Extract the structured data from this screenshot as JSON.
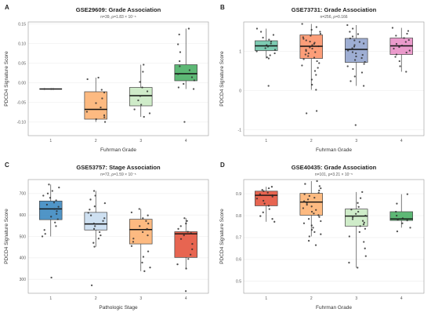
{
  "chart_data": [
    {
      "type": "box",
      "panel": "A",
      "title": "GSE29609: Grade Association",
      "subtitle": "n=39, ρ=1.83 × 10⁻⁶",
      "xlabel": "Fuhrman Grade",
      "ylabel": "PDCD4 Signature Score",
      "categories": [
        "1",
        "2",
        "3",
        "4"
      ],
      "colors": [
        "#000000",
        "#fdae6b",
        "#c7e9c0",
        "#41ab5d"
      ],
      "ylim": [
        -0.135,
        0.155
      ],
      "yticks": [
        -0.1,
        -0.05,
        0.0,
        0.05,
        0.1,
        0.15
      ],
      "ytick_labels": [
        "-0.10",
        "-0.05",
        "0.00",
        "0.05",
        "0.10",
        "0.15"
      ],
      "boxes": [
        {
          "category": "1",
          "min": -0.016,
          "q1": -0.016,
          "median": -0.016,
          "q3": -0.016,
          "max": -0.016
        },
        {
          "category": "2",
          "min": -0.1,
          "q1": -0.093,
          "median": -0.068,
          "q3": -0.023,
          "max": 0.013
        },
        {
          "category": "3",
          "min": -0.087,
          "q1": -0.059,
          "median": -0.033,
          "q3": -0.012,
          "max": 0.046
        },
        {
          "category": "4",
          "min": -0.016,
          "q1": 0.005,
          "median": 0.023,
          "q3": 0.046,
          "max": 0.138
        }
      ],
      "points": [
        [
          -0.016,
          -0.016,
          -0.016
        ],
        [
          0.013,
          0.009,
          -0.018,
          -0.025,
          -0.052,
          -0.063,
          -0.074,
          -0.083,
          -0.093,
          -0.1,
          -0.088,
          -0.04
        ],
        [
          0.046,
          0.028,
          0.002,
          -0.012,
          -0.022,
          -0.034,
          -0.045,
          -0.056,
          -0.068,
          -0.078,
          -0.087
        ],
        [
          0.138,
          0.123,
          0.098,
          0.078,
          0.055,
          0.042,
          0.032,
          0.022,
          0.014,
          0.006,
          -0.003,
          -0.012,
          -0.016,
          -0.1
        ]
      ]
    },
    {
      "type": "box",
      "panel": "B",
      "title": "GSE73731: Grade Association",
      "subtitle": "n=256, ρ=0.166",
      "xlabel": "Fuhrman Grade",
      "ylabel": "PDCD4 Signature Score",
      "categories": [
        "1",
        "2",
        "3",
        "4"
      ],
      "colors": [
        "#66c2a5",
        "#fc8d62",
        "#8da0cb",
        "#e78ac3"
      ],
      "ylim": [
        -1.15,
        1.75
      ],
      "yticks": [
        -1,
        0,
        1
      ],
      "ytick_labels": [
        "-1",
        "0",
        "1"
      ],
      "boxes": [
        {
          "category": "1",
          "min": 0.82,
          "q1": 1.02,
          "median": 1.14,
          "q3": 1.27,
          "max": 1.58
        },
        {
          "category": "2",
          "min": 0.02,
          "q1": 0.82,
          "median": 1.13,
          "q3": 1.42,
          "max": 1.7
        },
        {
          "category": "3",
          "min": 0.12,
          "q1": 0.72,
          "median": 1.05,
          "q3": 1.33,
          "max": 1.67
        },
        {
          "category": "4",
          "min": 0.48,
          "q1": 0.92,
          "median": 1.14,
          "q3": 1.34,
          "max": 1.6
        }
      ],
      "points": [
        [
          1.58,
          1.5,
          1.42,
          1.35,
          1.3,
          1.25,
          1.2,
          1.16,
          1.12,
          1.08,
          1.04,
          1.0,
          0.95,
          0.9,
          0.85,
          0.82,
          0.12
        ],
        [
          1.7,
          1.62,
          1.55,
          1.5,
          1.45,
          1.4,
          1.36,
          1.32,
          1.28,
          1.25,
          1.22,
          1.19,
          1.16,
          1.13,
          1.1,
          1.07,
          1.04,
          1.01,
          0.98,
          0.95,
          0.92,
          0.88,
          0.84,
          0.8,
          0.75,
          0.7,
          0.64,
          0.58,
          0.5,
          0.4,
          0.28,
          0.15,
          0.02,
          -0.52,
          -0.58
        ],
        [
          1.67,
          1.58,
          1.5,
          1.44,
          1.38,
          1.33,
          1.28,
          1.24,
          1.2,
          1.16,
          1.12,
          1.08,
          1.05,
          1.02,
          0.98,
          0.95,
          0.91,
          0.87,
          0.83,
          0.78,
          0.73,
          0.68,
          0.62,
          0.55,
          0.46,
          0.36,
          0.24,
          0.12,
          -0.88
        ],
        [
          1.6,
          1.52,
          1.45,
          1.4,
          1.34,
          1.29,
          1.24,
          1.19,
          1.15,
          1.11,
          1.07,
          1.02,
          0.97,
          0.92,
          0.86,
          0.75,
          0.62,
          0.48
        ]
      ]
    },
    {
      "type": "box",
      "panel": "C",
      "title": "GSE53757: Stage Association",
      "subtitle": "n=72, ρ=1.59 × 10⁻⁵",
      "xlabel": "Pathologic Stage",
      "ylabel": "PDCD4 Signature Score",
      "categories": [
        "1",
        "2",
        "3",
        "4"
      ],
      "colors": [
        "#3182bd",
        "#c6dbef",
        "#fdae6b",
        "#e34a33"
      ],
      "ylim": [
        235,
        765
      ],
      "yticks": [
        300,
        400,
        500,
        600,
        700
      ],
      "ytick_labels": [
        "300",
        "400",
        "500",
        "600",
        "700"
      ],
      "boxes": [
        {
          "category": "1",
          "min": 500,
          "q1": 578,
          "median": 628,
          "q3": 665,
          "max": 742
        },
        {
          "category": "2",
          "min": 452,
          "q1": 530,
          "median": 558,
          "q3": 612,
          "max": 712
        },
        {
          "category": "3",
          "min": 338,
          "q1": 465,
          "median": 532,
          "q3": 580,
          "max": 628
        },
        {
          "category": "4",
          "min": 350,
          "q1": 402,
          "median": 512,
          "q3": 522,
          "max": 585
        }
      ],
      "points": [
        [
          742,
          728,
          712,
          700,
          690,
          680,
          668,
          658,
          648,
          638,
          628,
          618,
          605,
          592,
          580,
          565,
          548,
          530,
          512,
          500,
          308
        ],
        [
          712,
          690,
          672,
          655,
          640,
          625,
          610,
          598,
          585,
          572,
          560,
          548,
          535,
          520,
          505,
          490,
          470,
          452,
          272
        ],
        [
          628,
          612,
          598,
          585,
          572,
          560,
          548,
          535,
          520,
          505,
          490,
          475,
          455,
          430,
          405,
          378,
          355,
          338
        ],
        [
          585,
          572,
          560,
          548,
          535,
          522,
          515,
          505,
          488,
          465,
          440,
          415,
          395,
          370,
          350,
          245
        ]
      ]
    },
    {
      "type": "box",
      "panel": "D",
      "title": "GSE40435: Grade Association",
      "subtitle": "n=101, ρ=3.21 × 10⁻⁵",
      "xlabel": "Fuhrman Grade",
      "ylabel": "PDCD4 Signature Score",
      "categories": [
        "1",
        "2",
        "3",
        "4"
      ],
      "colors": [
        "#e34a33",
        "#fdae6b",
        "#c7e9c0",
        "#41ab5d"
      ],
      "ylim": [
        0.445,
        0.965
      ],
      "yticks": [
        0.5,
        0.6,
        0.7,
        0.8,
        0.9
      ],
      "ytick_labels": [
        "0.5",
        "0.6",
        "0.7",
        "0.8",
        "0.9"
      ],
      "boxes": [
        {
          "category": "1",
          "min": 0.772,
          "q1": 0.845,
          "median": 0.893,
          "q3": 0.912,
          "max": 0.932
        },
        {
          "category": "2",
          "min": 0.705,
          "q1": 0.802,
          "median": 0.862,
          "q3": 0.902,
          "max": 0.958
        },
        {
          "category": "3",
          "min": 0.562,
          "q1": 0.752,
          "median": 0.798,
          "q3": 0.83,
          "max": 0.908
        },
        {
          "category": "4",
          "min": 0.745,
          "q1": 0.778,
          "median": 0.785,
          "q3": 0.818,
          "max": 0.898
        }
      ],
      "points": [
        [
          0.932,
          0.925,
          0.918,
          0.912,
          0.905,
          0.898,
          0.893,
          0.887,
          0.878,
          0.868,
          0.855,
          0.845,
          0.83,
          0.815,
          0.798,
          0.785,
          0.772
        ],
        [
          0.958,
          0.945,
          0.935,
          0.925,
          0.915,
          0.905,
          0.898,
          0.89,
          0.882,
          0.874,
          0.866,
          0.858,
          0.85,
          0.842,
          0.834,
          0.826,
          0.818,
          0.81,
          0.802,
          0.794,
          0.785,
          0.775,
          0.765,
          0.755,
          0.745,
          0.735,
          0.725,
          0.715,
          0.705,
          0.685,
          0.665
        ],
        [
          0.908,
          0.88,
          0.858,
          0.84,
          0.828,
          0.818,
          0.808,
          0.8,
          0.792,
          0.784,
          0.776,
          0.768,
          0.76,
          0.752,
          0.74,
          0.725,
          0.705,
          0.68,
          0.65,
          0.615,
          0.585,
          0.562
        ],
        [
          0.898,
          0.855,
          0.818,
          0.8,
          0.788,
          0.782,
          0.778,
          0.765,
          0.745,
          0.728
        ]
      ]
    }
  ]
}
